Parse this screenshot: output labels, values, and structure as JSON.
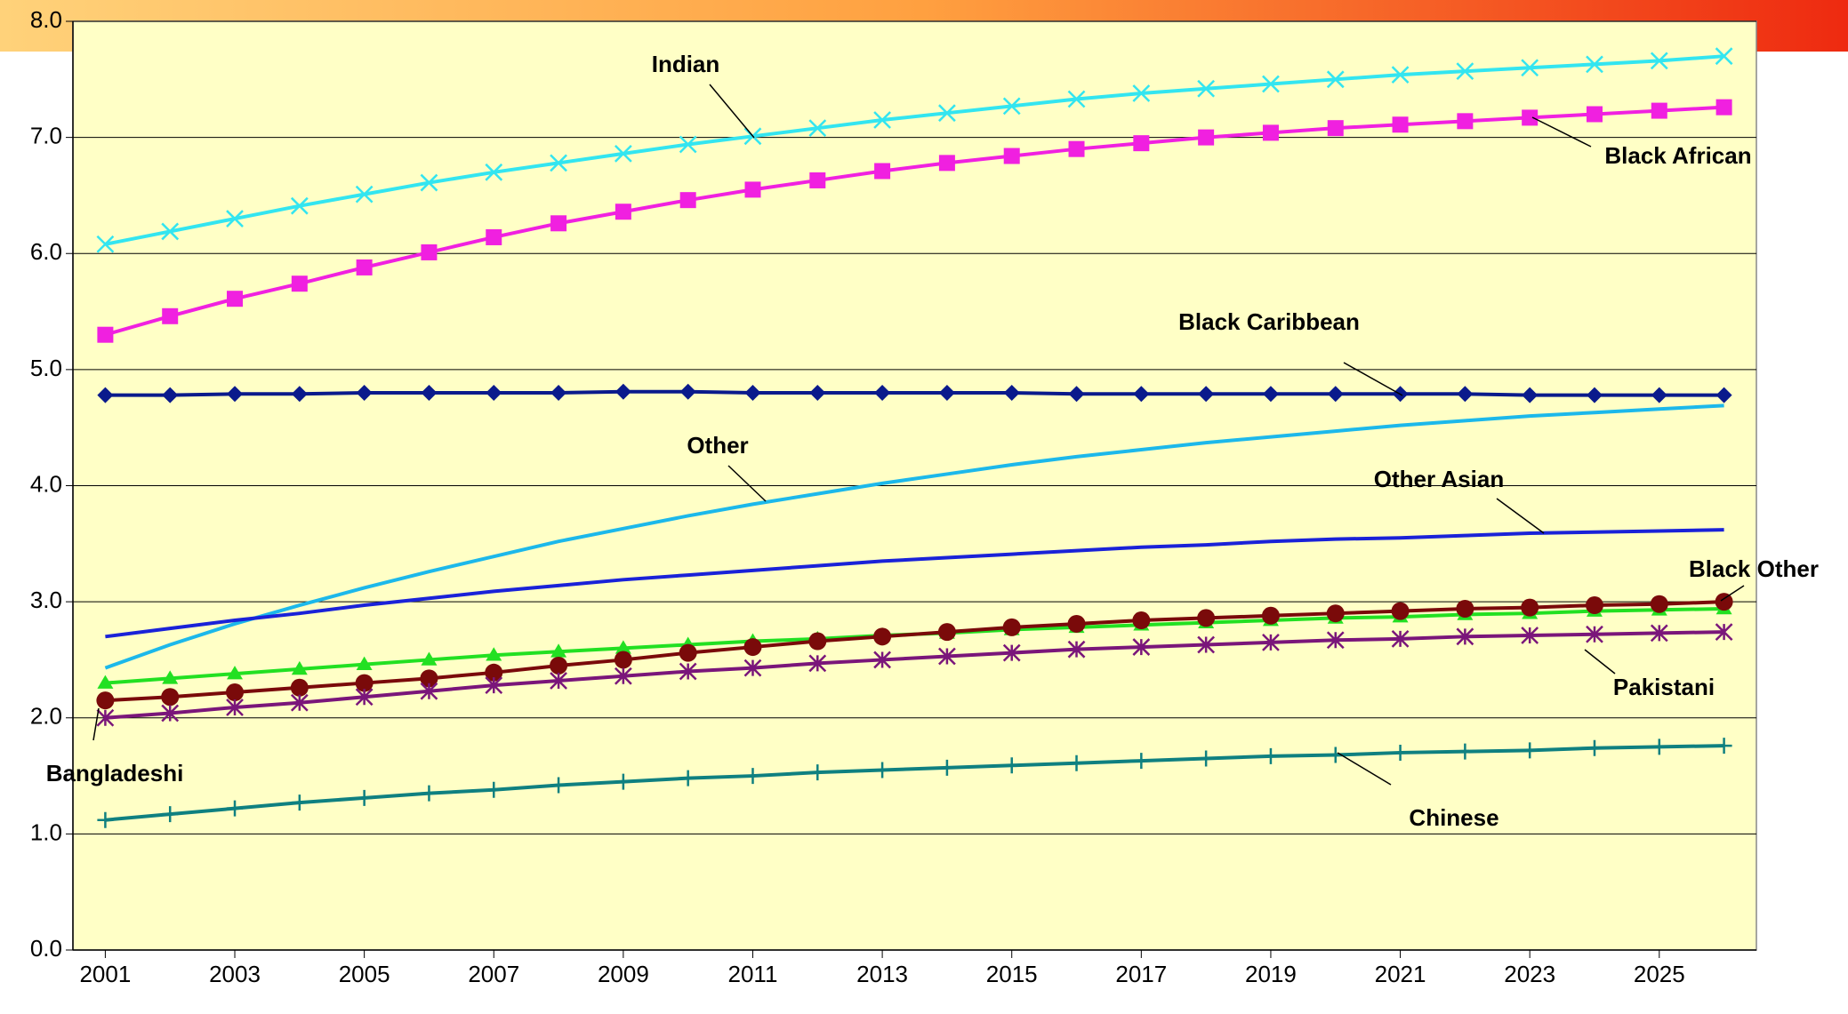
{
  "chart_data": {
    "type": "line",
    "x": [
      2001,
      2002,
      2003,
      2004,
      2005,
      2006,
      2007,
      2008,
      2009,
      2010,
      2011,
      2012,
      2013,
      2014,
      2015,
      2016,
      2017,
      2018,
      2019,
      2020,
      2021,
      2022,
      2023,
      2024,
      2025,
      2026
    ],
    "xlim": [
      2000.5,
      2026.5
    ],
    "xticks": [
      2001,
      2003,
      2005,
      2007,
      2009,
      2011,
      2013,
      2015,
      2017,
      2019,
      2021,
      2023,
      2025
    ],
    "ylim": [
      0,
      8
    ],
    "yticks": [
      {
        "value": 0,
        "label": "0.0"
      },
      {
        "value": 1,
        "label": "1.0"
      },
      {
        "value": 2,
        "label": "2.0"
      },
      {
        "value": 3,
        "label": "3.0"
      },
      {
        "value": 4,
        "label": "4.0"
      },
      {
        "value": 5,
        "label": "5.0"
      },
      {
        "value": 6,
        "label": "6.0"
      },
      {
        "value": 7,
        "label": "7.0"
      },
      {
        "value": 8,
        "label": "8.0"
      }
    ],
    "grid": true,
    "series": [
      {
        "name": "Indian",
        "color": "#33e5f0",
        "marker": "x",
        "values": [
          6.08,
          6.19,
          6.3,
          6.41,
          6.51,
          6.61,
          6.7,
          6.78,
          6.86,
          6.94,
          7.01,
          7.08,
          7.15,
          7.21,
          7.27,
          7.33,
          7.38,
          7.42,
          7.46,
          7.5,
          7.54,
          7.57,
          7.6,
          7.63,
          7.66,
          7.7
        ]
      },
      {
        "name": "Black African",
        "color": "#f020e0",
        "marker": "square",
        "values": [
          5.3,
          5.46,
          5.61,
          5.74,
          5.88,
          6.01,
          6.14,
          6.26,
          6.36,
          6.46,
          6.55,
          6.63,
          6.71,
          6.78,
          6.84,
          6.9,
          6.95,
          7.0,
          7.04,
          7.08,
          7.11,
          7.14,
          7.17,
          7.2,
          7.23,
          7.26
        ]
      },
      {
        "name": "Black Caribbean",
        "color": "#0a1a8c",
        "marker": "diamond",
        "values": [
          4.78,
          4.78,
          4.79,
          4.79,
          4.8,
          4.8,
          4.8,
          4.8,
          4.81,
          4.81,
          4.8,
          4.8,
          4.8,
          4.8,
          4.8,
          4.79,
          4.79,
          4.79,
          4.79,
          4.79,
          4.79,
          4.79,
          4.78,
          4.78,
          4.78,
          4.78
        ]
      },
      {
        "name": "Other",
        "color": "#1cb8ea",
        "marker": "none",
        "values": [
          2.43,
          2.63,
          2.81,
          2.97,
          3.12,
          3.26,
          3.39,
          3.52,
          3.63,
          3.74,
          3.84,
          3.93,
          4.02,
          4.1,
          4.18,
          4.25,
          4.31,
          4.37,
          4.42,
          4.47,
          4.52,
          4.56,
          4.6,
          4.63,
          4.66,
          4.69
        ]
      },
      {
        "name": "Other Asian",
        "color": "#1a22d8",
        "marker": "none",
        "values": [
          2.7,
          2.77,
          2.84,
          2.9,
          2.97,
          3.03,
          3.09,
          3.14,
          3.19,
          3.23,
          3.27,
          3.31,
          3.35,
          3.38,
          3.41,
          3.44,
          3.47,
          3.49,
          3.52,
          3.54,
          3.55,
          3.57,
          3.59,
          3.6,
          3.61,
          3.62
        ]
      },
      {
        "name": "Black Other",
        "color": "#22e022",
        "marker": "triangle",
        "values": [
          2.3,
          2.34,
          2.38,
          2.42,
          2.46,
          2.5,
          2.54,
          2.57,
          2.6,
          2.63,
          2.66,
          2.68,
          2.71,
          2.73,
          2.76,
          2.78,
          2.8,
          2.82,
          2.84,
          2.86,
          2.87,
          2.89,
          2.9,
          2.92,
          2.93,
          2.94
        ]
      },
      {
        "name": "Bangladeshi",
        "color": "#7a0a0a",
        "marker": "circle",
        "values": [
          2.15,
          2.18,
          2.22,
          2.26,
          2.3,
          2.34,
          2.39,
          2.45,
          2.5,
          2.56,
          2.61,
          2.66,
          2.7,
          2.74,
          2.78,
          2.81,
          2.84,
          2.86,
          2.88,
          2.9,
          2.92,
          2.94,
          2.95,
          2.97,
          2.98,
          3.0
        ]
      },
      {
        "name": "Pakistani",
        "color": "#7a167a",
        "marker": "asterisk",
        "values": [
          2.0,
          2.04,
          2.09,
          2.13,
          2.18,
          2.23,
          2.28,
          2.32,
          2.36,
          2.4,
          2.43,
          2.47,
          2.5,
          2.53,
          2.56,
          2.59,
          2.61,
          2.63,
          2.65,
          2.67,
          2.68,
          2.7,
          2.71,
          2.72,
          2.73,
          2.74
        ]
      },
      {
        "name": "Chinese",
        "color": "#0f8080",
        "marker": "plus",
        "values": [
          1.12,
          1.17,
          1.22,
          1.27,
          1.31,
          1.35,
          1.38,
          1.42,
          1.45,
          1.48,
          1.5,
          1.53,
          1.55,
          1.57,
          1.59,
          1.61,
          1.63,
          1.65,
          1.67,
          1.68,
          1.7,
          1.71,
          1.72,
          1.74,
          1.75,
          1.76
        ]
      }
    ]
  }
}
